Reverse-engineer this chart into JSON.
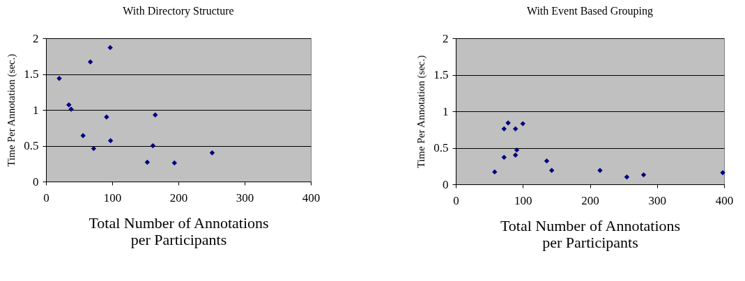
{
  "chart_data": [
    {
      "type": "scatter",
      "title": "With Directory Structure",
      "xlabel": "Total Number of Annotations\nper Participants",
      "ylabel": "Time Per Annotation (sec.)",
      "series": [
        {
          "color": "#000080",
          "x": [
            20,
            67,
            97,
            34.5,
            38,
            91.5,
            165,
            56,
            72,
            97.5,
            161.5,
            153,
            194,
            251
          ],
          "values": [
            1.44,
            1.67,
            1.87,
            1.07,
            1.01,
            0.9,
            0.93,
            0.64,
            0.46,
            0.57,
            0.5,
            0.27,
            0.26,
            0.4
          ]
        }
      ],
      "xlim": [
        0,
        400
      ],
      "xticks": [
        0,
        100,
        200,
        300,
        400
      ],
      "ylim": [
        0,
        2
      ],
      "yticks": [
        0,
        0.5,
        1,
        1.5,
        2
      ],
      "grid": "y",
      "marker": "diamond"
    },
    {
      "type": "scatter",
      "title": "With Event Based Grouping",
      "xlabel": "Total Number of Annotations\nper Participants",
      "ylabel": "Time Per Annotation (sec.)",
      "series": [
        {
          "color": "#000080",
          "x": [
            58,
            72,
            72,
            78,
            89,
            89,
            91,
            100,
            135.6,
            143,
            215,
            255,
            280,
            398
          ],
          "values": [
            0.17,
            0.37,
            0.76,
            0.84,
            0.76,
            0.4,
            0.47,
            0.83,
            0.32,
            0.19,
            0.19,
            0.1,
            0.13,
            0.16
          ]
        }
      ],
      "xlim": [
        0,
        400
      ],
      "xticks": [
        0,
        100,
        200,
        300,
        400
      ],
      "ylim": [
        0,
        2
      ],
      "yticks": [
        0,
        0.5,
        1,
        1.5,
        2
      ],
      "grid": "y",
      "marker": "diamond"
    }
  ]
}
